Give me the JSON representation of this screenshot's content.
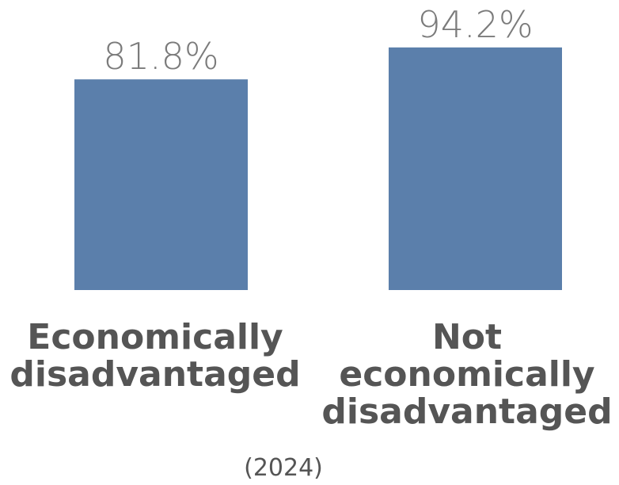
{
  "chart_data": {
    "type": "bar",
    "categories": [
      "Economically disadvantaged",
      "Not economically disadvantaged"
    ],
    "category_lines": [
      [
        "Economically",
        "disadvantaged"
      ],
      [
        "Not",
        "economically",
        "disadvantaged"
      ]
    ],
    "values": [
      81.8,
      94.2
    ],
    "value_labels": [
      "81.8%",
      "94.2%"
    ],
    "note": "(2024)",
    "ylim": [
      0,
      100
    ],
    "grid": false,
    "colors": {
      "bar": "#5b7fab",
      "value_text": "#7b7b7b",
      "category_text": "#555555"
    }
  }
}
